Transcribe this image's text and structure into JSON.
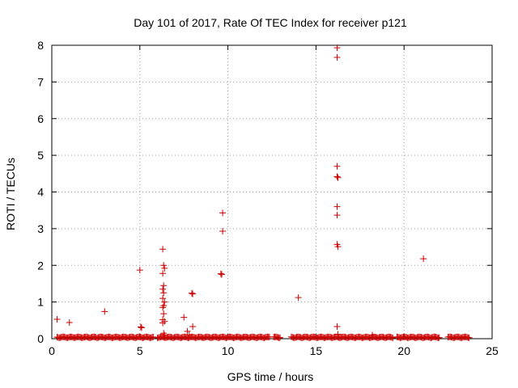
{
  "chart_data": {
    "type": "scatter",
    "title": "Day 101 of 2017, Rate Of TEC Index for receiver p121",
    "xlabel": "GPS time / hours",
    "ylabel": "ROTI / TECUs",
    "xlim": [
      0,
      25
    ],
    "ylim": [
      0,
      8
    ],
    "xticks": [
      0,
      5,
      10,
      15,
      20,
      25
    ],
    "yticks": [
      0,
      1,
      2,
      3,
      4,
      5,
      6,
      7,
      8
    ],
    "grid": true,
    "marker": "+",
    "color": "#cc0000",
    "baseline_segments": [
      [
        0.3,
        5.8
      ],
      [
        6.0,
        12.4
      ],
      [
        12.6,
        13.0
      ],
      [
        13.6,
        19.4
      ],
      [
        19.6,
        22.0
      ],
      [
        22.5,
        23.7
      ]
    ],
    "baseline_level": 0.02,
    "points": [
      [
        0.3,
        0.53
      ],
      [
        1.0,
        0.44
      ],
      [
        3.0,
        0.74
      ],
      [
        5.0,
        1.87
      ],
      [
        5.05,
        0.32
      ],
      [
        5.1,
        0.3
      ],
      [
        6.3,
        2.44
      ],
      [
        6.35,
        2.0
      ],
      [
        6.4,
        1.92
      ],
      [
        6.3,
        1.78
      ],
      [
        6.35,
        1.45
      ],
      [
        6.3,
        1.35
      ],
      [
        6.35,
        1.25
      ],
      [
        6.3,
        1.1
      ],
      [
        6.4,
        1.0
      ],
      [
        6.35,
        0.9
      ],
      [
        6.3,
        0.85
      ],
      [
        6.35,
        0.68
      ],
      [
        6.3,
        0.52
      ],
      [
        6.4,
        0.47
      ],
      [
        6.3,
        0.43
      ],
      [
        6.35,
        0.15
      ],
      [
        6.4,
        0.1
      ],
      [
        7.5,
        0.58
      ],
      [
        7.7,
        0.2
      ],
      [
        7.8,
        0.1
      ],
      [
        7.95,
        1.24
      ],
      [
        8.0,
        1.22
      ],
      [
        8.0,
        0.33
      ],
      [
        9.6,
        1.77
      ],
      [
        9.65,
        1.75
      ],
      [
        9.7,
        3.43
      ],
      [
        9.7,
        2.93
      ],
      [
        14.0,
        1.12
      ],
      [
        16.2,
        7.93
      ],
      [
        16.2,
        7.67
      ],
      [
        16.2,
        4.7
      ],
      [
        16.2,
        4.42
      ],
      [
        16.25,
        4.39
      ],
      [
        16.2,
        3.6
      ],
      [
        16.2,
        3.37
      ],
      [
        16.2,
        2.57
      ],
      [
        16.25,
        2.51
      ],
      [
        16.2,
        0.33
      ],
      [
        16.25,
        0.12
      ],
      [
        18.2,
        0.1
      ],
      [
        21.1,
        2.18
      ]
    ]
  }
}
